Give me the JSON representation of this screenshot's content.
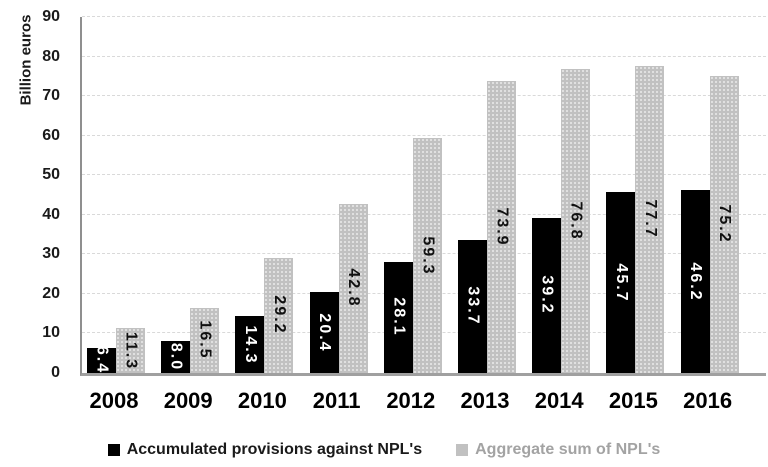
{
  "chart_data": {
    "type": "bar",
    "title": "",
    "ylabel": "Billion euros",
    "xlabel": "",
    "ylim": [
      0,
      90
    ],
    "ytick_step": 10,
    "grid": true,
    "legend_position": "bottom",
    "categories": [
      "2008",
      "2009",
      "2010",
      "2011",
      "2012",
      "2013",
      "2014",
      "2015",
      "2016"
    ],
    "series": [
      {
        "name": "Accumulated provisions against NPL's",
        "color": "#000000",
        "label_color": "#ffffff",
        "legend_text_color": "#1a1a1a",
        "values": [
          6.4,
          8.0,
          14.3,
          20.4,
          28.1,
          33.7,
          39.2,
          45.7,
          46.2
        ]
      },
      {
        "name": "Aggregate sum of NPL's",
        "color": "#c1c1c1",
        "label_color": "#111111",
        "legend_text_color": "#a3a3a3",
        "values": [
          11.3,
          16.5,
          29.2,
          42.8,
          59.3,
          73.9,
          76.8,
          77.7,
          75.2
        ]
      }
    ]
  }
}
